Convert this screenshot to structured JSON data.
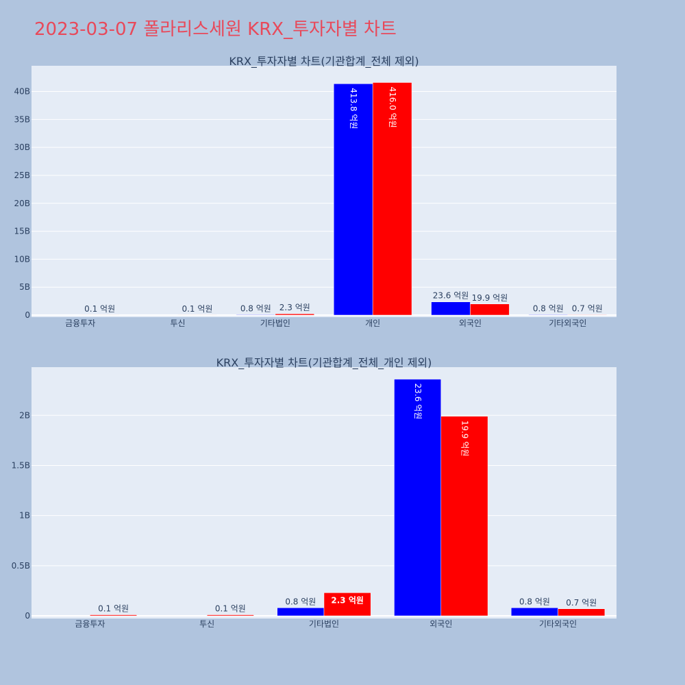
{
  "title": "2023-03-07 폴라리스세원 KRX_투자자별 차트",
  "colors": {
    "buy": "#0000ff",
    "sell": "#ff0000",
    "plot_bg": "#e5ecf6",
    "paper_bg": "#b0c4de",
    "title": "#e8495a"
  },
  "chart_data": [
    {
      "type": "bar",
      "title": "KRX_투자자별 차트(기관합계_전체 제외)",
      "categories": [
        "금융투자",
        "투신",
        "기타법인",
        "개인",
        "외국인",
        "기타외국인"
      ],
      "series": [
        {
          "color": "#0000ff",
          "values": [
            0,
            0,
            0.08,
            41.38,
            2.36,
            0.08
          ],
          "labels": [
            "",
            "",
            "0.8 억원",
            "413.8 억원",
            "23.6 억원",
            "0.8 억원"
          ]
        },
        {
          "color": "#ff0000",
          "values": [
            0.01,
            0.01,
            0.23,
            41.6,
            1.99,
            0.07
          ],
          "labels": [
            "0.1 억원",
            "0.1 억원",
            "2.3 억원",
            "416.0 억원",
            "19.9 억원",
            "0.7 억원"
          ]
        }
      ],
      "ylim": [
        0,
        44.6
      ],
      "yticks": [
        0,
        5,
        10,
        15,
        20,
        25,
        30,
        35,
        40
      ],
      "yticklabels": [
        "0",
        "5B",
        "10B",
        "15B",
        "20B",
        "25B",
        "30B",
        "35B",
        "40B"
      ],
      "grid": true
    },
    {
      "type": "bar",
      "title": "KRX_투자자별 차트(기관합계_전체_개인 제외)",
      "categories": [
        "금융투자",
        "투신",
        "기타법인",
        "외국인",
        "기타외국인"
      ],
      "series": [
        {
          "color": "#0000ff",
          "values": [
            0,
            0,
            0.08,
            2.36,
            0.08
          ],
          "labels": [
            "",
            "",
            "0.8 억원",
            "23.6 억원",
            "0.8 억원"
          ]
        },
        {
          "color": "#ff0000",
          "values": [
            0.01,
            0.01,
            0.23,
            1.99,
            0.07
          ],
          "labels": [
            "0.1 억원",
            "0.1 억원",
            "2.3 억원",
            "19.9 억원",
            "0.7 억원"
          ]
        }
      ],
      "ylim": [
        0,
        2.48
      ],
      "yticks": [
        0,
        0.5,
        1,
        1.5,
        2
      ],
      "yticklabels": [
        "0",
        "0.5B",
        "1B",
        "1.5B",
        "2B"
      ],
      "grid": true
    }
  ]
}
